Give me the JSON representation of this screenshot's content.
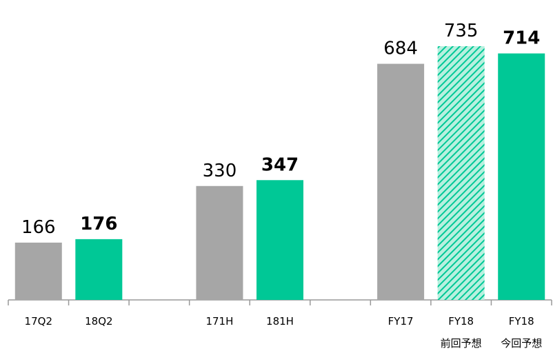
{
  "chart_data": {
    "type": "bar",
    "categories": [
      "17Q2",
      "18Q2",
      null,
      "171H",
      "181H",
      null,
      "FY17",
      "FY18",
      "FY18"
    ],
    "category_sublabels": [
      null,
      null,
      null,
      null,
      null,
      null,
      null,
      "前回予想",
      "今回予想"
    ],
    "values": [
      166,
      176,
      null,
      330,
      347,
      null,
      684,
      735,
      714
    ],
    "colors": [
      "#a6a6a6",
      "#00c896",
      null,
      "#a6a6a6",
      "#00c896",
      null,
      "#a6a6a6",
      "#00c896",
      "#00c896"
    ],
    "hatched": [
      false,
      false,
      false,
      false,
      false,
      false,
      false,
      true,
      false
    ],
    "bold_labels": [
      false,
      true,
      false,
      false,
      true,
      false,
      false,
      false,
      true
    ]
  }
}
